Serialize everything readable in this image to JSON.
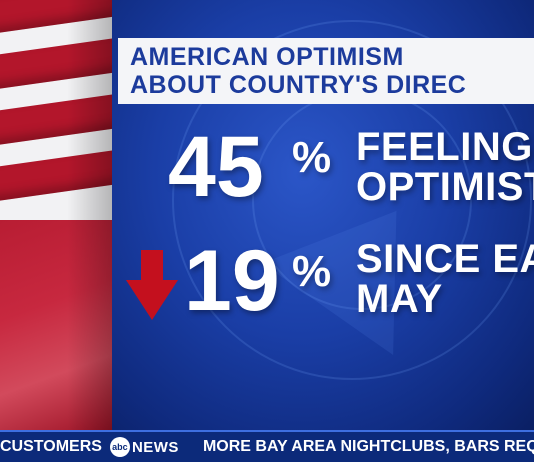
{
  "graphic": {
    "headline_line1": "AMERICAN OPTIMISM",
    "headline_line2": "ABOUT COUNTRY'S DIREC",
    "stat1": {
      "number": "45",
      "percent": "%",
      "label_line1": "FEELING",
      "label_line2": "OPTIMIST"
    },
    "stat2": {
      "number": "19",
      "percent": "%",
      "label_line1": "SINCE EA",
      "label_line2": "MAY",
      "trend": "down"
    }
  },
  "ticker": {
    "left_text": "CUSTOMERS",
    "logo_mark": "abc",
    "logo_text": "NEWS",
    "right_text": "MORE BAY AREA NIGHTCLUBS, BARS REQUIR"
  },
  "colors": {
    "panel_blue": "#1a3ea6",
    "headline_text": "#1c3b9c",
    "arrow_red": "#c4101e",
    "flag_red": "#b3162b"
  }
}
